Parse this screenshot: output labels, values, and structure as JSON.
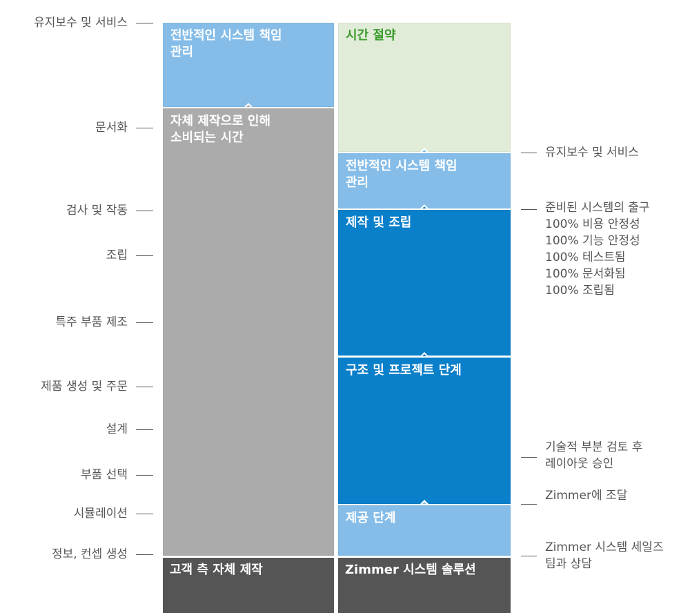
{
  "left_labels": [
    "유지보수 및 서비스",
    "문서화",
    "검사 및 작동",
    "조립",
    "특주 부품 제조",
    "제품 생성 및 주문",
    "설계",
    "부품 선택",
    "시뮬레이션",
    "정보, 컨셉 생성"
  ],
  "left_column": {
    "blocks": [
      {
        "lines": [
          "전반적인 시스템 책임",
          "관리"
        ]
      },
      {
        "lines": [
          "자체 제작으로 인해",
          "소비되는 시간"
        ]
      }
    ],
    "footer": "고객 측 자체 제작"
  },
  "right_column": {
    "blocks": [
      {
        "lines": [
          "시간 절약"
        ]
      },
      {
        "lines": [
          "전반적인 시스템 책임",
          "관리"
        ]
      },
      {
        "lines": [
          "제작 및 조립"
        ]
      },
      {
        "lines": [
          "구조 및 프로젝트 단계"
        ]
      },
      {
        "lines": [
          "제공 단계"
        ]
      }
    ],
    "footer": "Zimmer 시스템 솔루션"
  },
  "right_labels": [
    {
      "lines": [
        "유지보수 및 서비스"
      ]
    },
    {
      "lines": [
        "준비된 시스템의 출구",
        "100%  비용 안정성",
        "100%  기능 안정성",
        "100%  테스트됨",
        "100%  문서화됨",
        "100%  조립됨"
      ]
    },
    {
      "lines": [
        "기술적 부분 검토 후",
        "레이아웃 승인"
      ]
    },
    {
      "lines": [
        "Zimmer에 조달"
      ]
    },
    {
      "lines": [
        "Zimmer 시스템 세일즈",
        "팀과 상담"
      ]
    }
  ]
}
